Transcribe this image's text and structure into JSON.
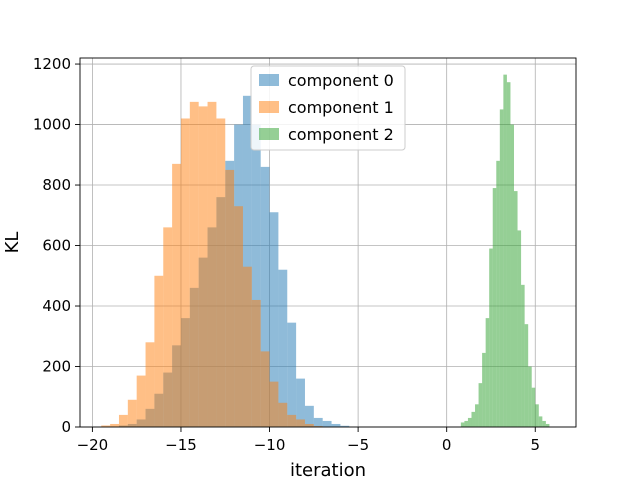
{
  "chart_data": {
    "type": "histogram",
    "title": "",
    "xlabel": "iteration",
    "ylabel": "KL",
    "xlim": [
      -20.7,
      7.3
    ],
    "ylim": [
      0,
      1220
    ],
    "xticks": [
      -20,
      -15,
      -10,
      -5,
      0,
      5
    ],
    "yticks": [
      0,
      200,
      400,
      600,
      800,
      1000,
      1200
    ],
    "xtick_labels": [
      "−20",
      "−15",
      "−10",
      "−5",
      "0",
      "5"
    ],
    "ytick_labels": [
      "0",
      "200",
      "400",
      "600",
      "800",
      "1000",
      "1200"
    ],
    "grid": true,
    "legend_position": "top-center",
    "alpha": 0.5,
    "series": [
      {
        "name": "component 0",
        "color": "#1f77b4",
        "bins": [
          [
            -18.5,
            -18.0,
            5
          ],
          [
            -18.0,
            -17.5,
            10
          ],
          [
            -17.5,
            -17.0,
            25
          ],
          [
            -17.0,
            -16.5,
            60
          ],
          [
            -16.5,
            -16.0,
            110
          ],
          [
            -16.0,
            -15.5,
            180
          ],
          [
            -15.5,
            -15.0,
            270
          ],
          [
            -15.0,
            -14.5,
            360
          ],
          [
            -14.5,
            -14.0,
            460
          ],
          [
            -14.0,
            -13.5,
            560
          ],
          [
            -13.5,
            -13.0,
            660
          ],
          [
            -13.0,
            -12.5,
            760
          ],
          [
            -12.5,
            -12.0,
            880
          ],
          [
            -12.0,
            -11.5,
            1000
          ],
          [
            -11.5,
            -11.0,
            1095
          ],
          [
            -11.0,
            -10.5,
            1000
          ],
          [
            -10.5,
            -10.0,
            860
          ],
          [
            -10.0,
            -9.5,
            710
          ],
          [
            -9.5,
            -9.0,
            520
          ],
          [
            -9.0,
            -8.5,
            345
          ],
          [
            -8.5,
            -8.0,
            160
          ],
          [
            -8.0,
            -7.5,
            70
          ],
          [
            -7.5,
            -7.0,
            30
          ],
          [
            -7.0,
            -6.5,
            20
          ],
          [
            -6.5,
            -6.0,
            10
          ],
          [
            -6.0,
            -5.5,
            4
          ]
        ]
      },
      {
        "name": "component 1",
        "color": "#ff7f0e",
        "bins": [
          [
            -19.5,
            -19.0,
            5
          ],
          [
            -19.0,
            -18.5,
            10
          ],
          [
            -18.5,
            -18.0,
            40
          ],
          [
            -18.0,
            -17.5,
            90
          ],
          [
            -17.5,
            -17.0,
            170
          ],
          [
            -17.0,
            -16.5,
            280
          ],
          [
            -16.5,
            -16.0,
            500
          ],
          [
            -16.0,
            -15.5,
            660
          ],
          [
            -15.5,
            -15.0,
            870
          ],
          [
            -15.0,
            -14.5,
            1020
          ],
          [
            -14.5,
            -14.0,
            1075
          ],
          [
            -14.0,
            -13.5,
            1060
          ],
          [
            -13.5,
            -13.0,
            1075
          ],
          [
            -13.0,
            -12.5,
            1020
          ],
          [
            -12.5,
            -12.0,
            850
          ],
          [
            -12.0,
            -11.5,
            730
          ],
          [
            -11.5,
            -11.0,
            530
          ],
          [
            -11.0,
            -10.5,
            420
          ],
          [
            -10.5,
            -10.0,
            250
          ],
          [
            -10.0,
            -9.5,
            150
          ],
          [
            -9.5,
            -9.0,
            80
          ],
          [
            -9.0,
            -8.5,
            40
          ],
          [
            -8.5,
            -8.0,
            25
          ],
          [
            -8.0,
            -7.5,
            10
          ],
          [
            -7.5,
            -7.0,
            3
          ]
        ]
      },
      {
        "name": "component 2",
        "color": "#2ca02c",
        "bins": [
          [
            0.8,
            1.0,
            15
          ],
          [
            1.0,
            1.2,
            20
          ],
          [
            1.2,
            1.4,
            30
          ],
          [
            1.4,
            1.6,
            50
          ],
          [
            1.6,
            1.8,
            75
          ],
          [
            1.8,
            2.0,
            145
          ],
          [
            2.0,
            2.2,
            245
          ],
          [
            2.2,
            2.4,
            360
          ],
          [
            2.4,
            2.6,
            590
          ],
          [
            2.6,
            2.8,
            790
          ],
          [
            2.8,
            3.0,
            880
          ],
          [
            3.0,
            3.2,
            1050
          ],
          [
            3.2,
            3.4,
            1165
          ],
          [
            3.4,
            3.6,
            1140
          ],
          [
            3.6,
            3.8,
            1000
          ],
          [
            3.8,
            4.0,
            780
          ],
          [
            4.0,
            4.2,
            650
          ],
          [
            4.2,
            4.4,
            470
          ],
          [
            4.4,
            4.6,
            340
          ],
          [
            4.6,
            4.8,
            200
          ],
          [
            4.8,
            5.0,
            130
          ],
          [
            5.0,
            5.2,
            75
          ],
          [
            5.2,
            5.4,
            35
          ],
          [
            5.4,
            5.6,
            20
          ],
          [
            5.6,
            5.8,
            10
          ]
        ]
      }
    ]
  }
}
